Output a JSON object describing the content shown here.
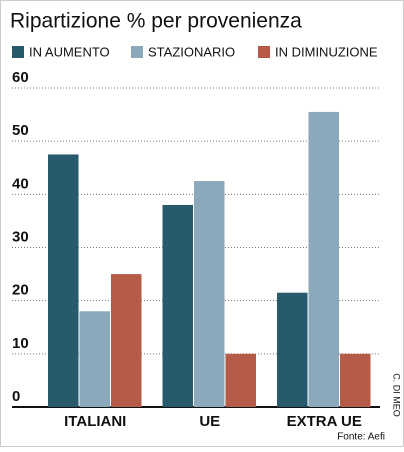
{
  "chart_data": {
    "type": "bar",
    "title": "Ripartizione % per provenienza",
    "categories": [
      "ITALIANI",
      "UE",
      "EXTRA UE"
    ],
    "series": [
      {
        "name": "IN AUMENTO",
        "color": "#275a6d",
        "values": [
          47.5,
          38,
          21.5
        ]
      },
      {
        "name": "STAZIONARIO",
        "color": "#8ba9ba",
        "values": [
          18,
          42.5,
          55.5
        ]
      },
      {
        "name": "IN DIMINUZIONE",
        "color": "#b55b47",
        "values": [
          25,
          10,
          10
        ]
      }
    ],
    "ylim": [
      0,
      60
    ],
    "yticks": [
      0,
      10,
      20,
      30,
      40,
      50,
      60
    ],
    "grid": true,
    "source": "Fonte: Aefi",
    "credit": "C. DI MEO"
  }
}
